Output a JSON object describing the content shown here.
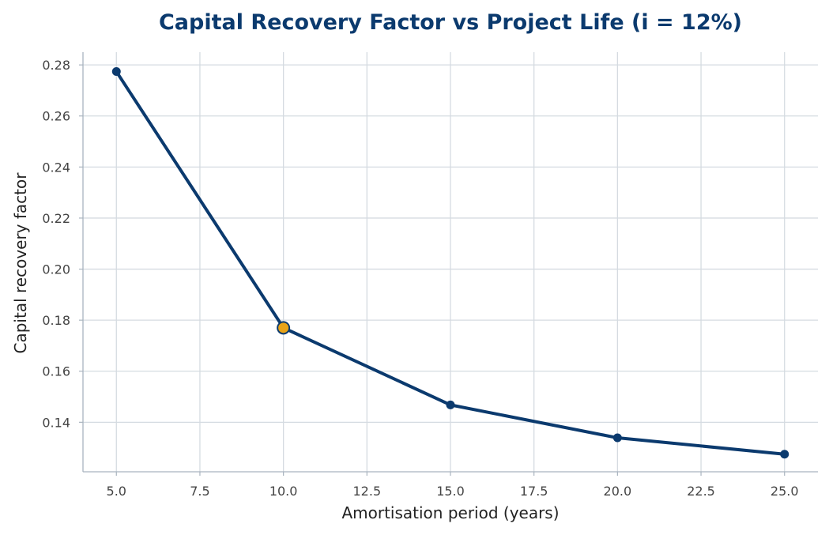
{
  "chart_data": {
    "type": "line",
    "title": "Capital Recovery Factor vs Project Life (i = 12%)",
    "xlabel": "Amortisation period (years)",
    "ylabel": "Capital recovery factor",
    "xlim": [
      4.0,
      26.0
    ],
    "ylim": [
      0.1206,
      0.285
    ],
    "x_ticks": [
      5.0,
      7.5,
      10.0,
      12.5,
      15.0,
      17.5,
      20.0,
      22.5,
      25.0
    ],
    "x_tick_labels": [
      "5.0",
      "7.5",
      "10.0",
      "12.5",
      "15.0",
      "17.5",
      "20.0",
      "22.5",
      "25.0"
    ],
    "y_ticks": [
      0.14,
      0.16,
      0.18,
      0.2,
      0.22,
      0.24,
      0.26,
      0.28
    ],
    "y_tick_labels": [
      "0.14",
      "0.16",
      "0.18",
      "0.20",
      "0.22",
      "0.24",
      "0.26",
      "0.28"
    ],
    "grid": true,
    "series": [
      {
        "x": [
          5,
          10,
          15,
          20,
          25
        ],
        "values": [
          0.2774,
          0.177,
          0.1468,
          0.1339,
          0.1275
        ],
        "color": "#0b3a6e"
      }
    ],
    "highlight": {
      "x": 10,
      "y": 0.177,
      "color": "#e8a317"
    }
  }
}
